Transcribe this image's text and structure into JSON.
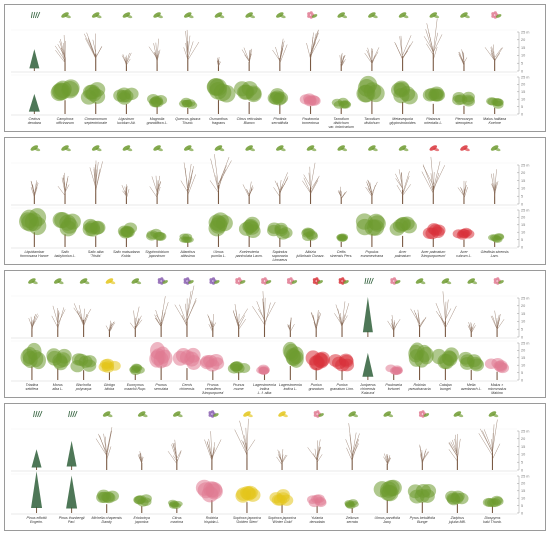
{
  "axis": {
    "ticks": [
      "25 m",
      "20",
      "15",
      "10",
      "5",
      "0"
    ]
  },
  "colors": {
    "frame": "#9a9a9a",
    "trunk": "#7a5a44",
    "bare_branch": "#8a6d5a",
    "leaf": "#6d9a2f",
    "conifer": "#2f5f3a",
    "purple_bloom": "#8a5fb0",
    "pink_bloom": "#e07a92",
    "red_leaf": "#d8323a",
    "yellow": "#e3c51a",
    "grid": "#d4d4d4"
  },
  "panels": [
    {
      "species": [
        "Cedrus\ndeodara",
        "Camphora\nofficinarum",
        "Cinnamomum\nseptentrionale",
        "Ligustrum\nlucidum Ait.",
        "Magnolia\ngrandiflora L.",
        "Quercus glauca\nThunb.",
        "Osmanthus\nfragrans",
        "Citrus reticulata\nBlanco",
        "Photinia\nserratifolia",
        "Paulownia\ntomentosa",
        "Taxodium distichum\nvar. imbricarium",
        "Taxodium\ndistichum",
        "Metasequoia\nglyptostroboides",
        "Platanus\norientalis L.",
        "Pterocarya\nstenoptera",
        "Malus halliana\nKoehne"
      ],
      "icons": [
        "conifer-icon",
        "broadleaf-icon",
        "broadleaf-icon",
        "broadleaf-icon",
        "leaf-icon",
        "leaf-icon",
        "leaf-icon",
        "leaf-icon",
        "leaf-icon",
        "flower-icon",
        "leaf-icon",
        "leaf-icon",
        "leaf-icon",
        "leaf-icon",
        "leaf-icon",
        "flower-icon"
      ]
    },
    {
      "species": [
        "Liquidambar\nformosana Hance",
        "Salix\nbabylonica L.",
        "Salix alba\n'Tristis'",
        "Salix matsudana\nKoidz.",
        "Styphnolobium\njaponicum",
        "Ailanthus\naltissima",
        "Ulmus\npumila L.",
        "Koelreuteria\npaniculata Laxm.",
        "Sapindus\nsaponaria Linnaeus",
        "Albizia\njulibrissin Durazz.",
        "Celtis\nsinensis Pers.",
        "Populus\neuramevicana",
        "Acer\npalmatum",
        "Acer palmatum\n'Atropurpureum'",
        "Acer\nrubrum L.",
        "Gleditsia sinensis\nLam."
      ],
      "icons": [
        "leaf-icon",
        "leaf-icon",
        "leaf-icon",
        "leaf-icon",
        "leaf-icon",
        "leaf-icon",
        "leaf-icon",
        "leaf-icon",
        "leaf-icon",
        "leaf-icon",
        "leaf-icon",
        "leaf-icon",
        "leaf-icon",
        "red-leaf-icon",
        "red-leaf-icon",
        "leaf-icon"
      ]
    },
    {
      "species": [
        "Triadica\nsebifera",
        "Morus\nalba L.",
        "Bischofia\npolycarpa",
        "Ginkgo\nbiloba",
        "Euonymus\nmaackii Rupr.",
        "Prunus\nserrulata",
        "Cercis\nchinensis",
        "Prunus\ncerasifera\n'Atropurpurea'",
        "Prunus\nmume",
        "Lagerstroemia\nindica\nL. f. alba",
        "Lagerstroemia\nindica L.",
        "Punica\ngranatum",
        "Punica\ngranatum Linn.",
        "Juniperus\nchinensis\n'Kaizuca'",
        "Paulownia\nfortunei",
        "Robinia\npseudoacacia",
        "Catalpa\nbungei",
        "Melia\nazedarach L.",
        "Malus × micromalus\nMakino"
      ],
      "icons": [
        "leaf-icon",
        "leaf-icon",
        "leaf-icon",
        "yellow-leaf-icon",
        "leaf-icon",
        "flower-icon",
        "flower-icon",
        "flower-icon",
        "flower-icon",
        "flower-icon",
        "flower-icon",
        "red-flower-icon",
        "red-flower-icon",
        "conifer-icon",
        "flower-icon",
        "leaf-icon",
        "leaf-icon",
        "leaf-icon",
        "flower-icon"
      ]
    },
    {
      "species": [
        "Pinus elliottii\nEngelm.",
        "Pinus thunbergii\nParl.",
        "Michelia chapensis\nDandy",
        "Eriobotrya\njaponica",
        "Citrus\nmaxima",
        "Robinia\nhispida L.",
        "Sophora japonica\n'Golden Stem'",
        "Sophora japonica\n'Winter Gold'",
        "Yulania\ndenudata",
        "Zelkova\nserrata",
        "Ulmus parvifolia\nJacq.",
        "Pyrus betulifolia\nBunge",
        "Ziziphus\njujuba Mill.",
        "Diospyros\nkaki Thunb."
      ],
      "icons": [
        "conifer-icon",
        "conifer-icon",
        "leaf-icon",
        "leaf-icon",
        "leaf-icon",
        "flower-icon",
        "yellow-leaf-icon",
        "yellow-leaf-icon",
        "flower-icon",
        "leaf-icon",
        "leaf-icon",
        "flower-icon",
        "leaf-icon",
        "leaf-icon"
      ]
    }
  ]
}
